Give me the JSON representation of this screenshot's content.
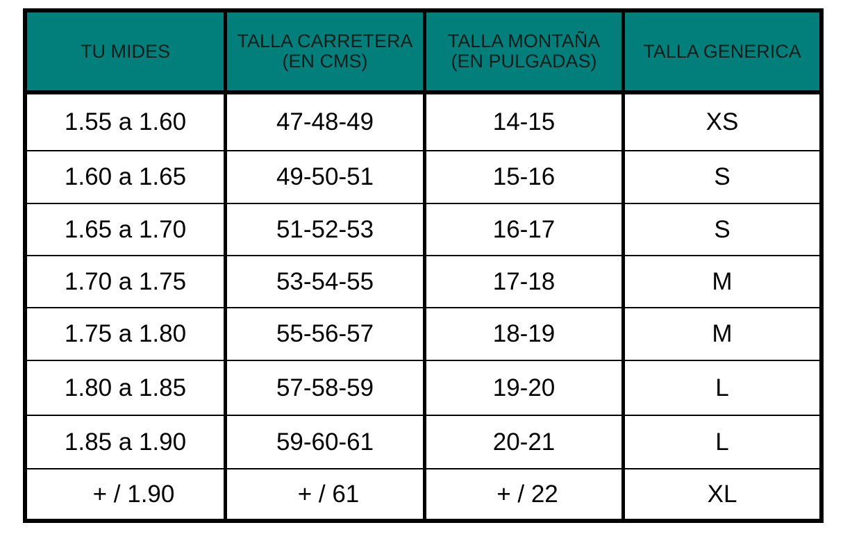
{
  "header_color": "#027f7a",
  "headers": [
    "TU MIDES",
    "TALLA CARRETERA   (EN CMS)",
    "TALLA MONTAÑA (EN PULGADAS)",
    "TALLA GENERICA"
  ],
  "rows": [
    [
      "1.55 a 1.60",
      "47-48-49",
      "14-15",
      "XS"
    ],
    [
      "1.60 a 1.65",
      "49-50-51",
      "15-16",
      "S"
    ],
    [
      "1.65 a 1.70",
      "51-52-53",
      "16-17",
      "S"
    ],
    [
      "1.70 a 1.75",
      "53-54-55",
      "17-18",
      "M"
    ],
    [
      "1.75 a 1.80",
      "55-56-57",
      "18-19",
      "M"
    ],
    [
      "1.80 a 1.85",
      "57-58-59",
      "19-20",
      "L"
    ],
    [
      "1.85 a 1.90",
      "59-60-61",
      "20-21",
      "L"
    ],
    [
      "+ / 1.90",
      "+ / 61",
      "+ / 22",
      "XL"
    ]
  ]
}
